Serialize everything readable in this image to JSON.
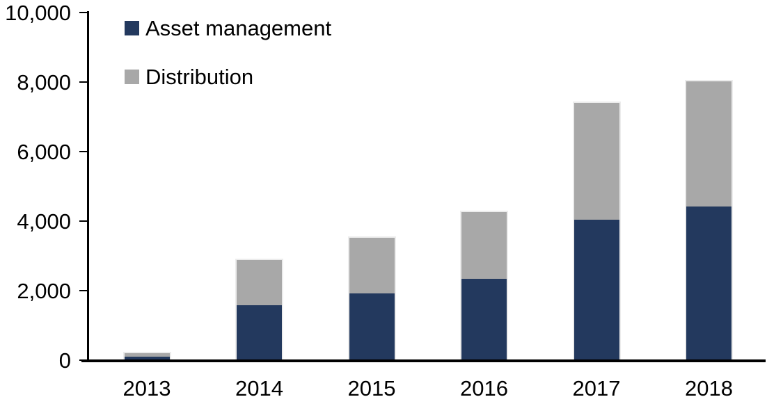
{
  "chart_data": {
    "type": "bar",
    "stacked": true,
    "title": "",
    "xlabel": "",
    "ylabel": "",
    "categories": [
      "2013",
      "2014",
      "2015",
      "2016",
      "2017",
      "2018"
    ],
    "series": [
      {
        "name": "Asset management",
        "color": "#23395e",
        "values": [
          90,
          1570,
          1900,
          2320,
          4030,
          4400
        ]
      },
      {
        "name": "Distribution",
        "color": "#a8a8a8",
        "values": [
          100,
          1300,
          1600,
          1930,
          3350,
          3600
        ]
      }
    ],
    "totals": [
      190,
      2870,
      3500,
      4250,
      7380,
      8000
    ],
    "ylim": [
      0,
      10000
    ],
    "y_tick_values": [
      0,
      2000,
      4000,
      6000,
      8000,
      10000
    ],
    "y_tick_labels": [
      "0",
      "2,000",
      "4,000",
      "6,000",
      "8,000",
      "10,000"
    ],
    "grid": false,
    "legend_position": "top-left-inside",
    "axis_color": "#000000",
    "bar_outline_color": "#ececec",
    "text_color": "#000000"
  }
}
